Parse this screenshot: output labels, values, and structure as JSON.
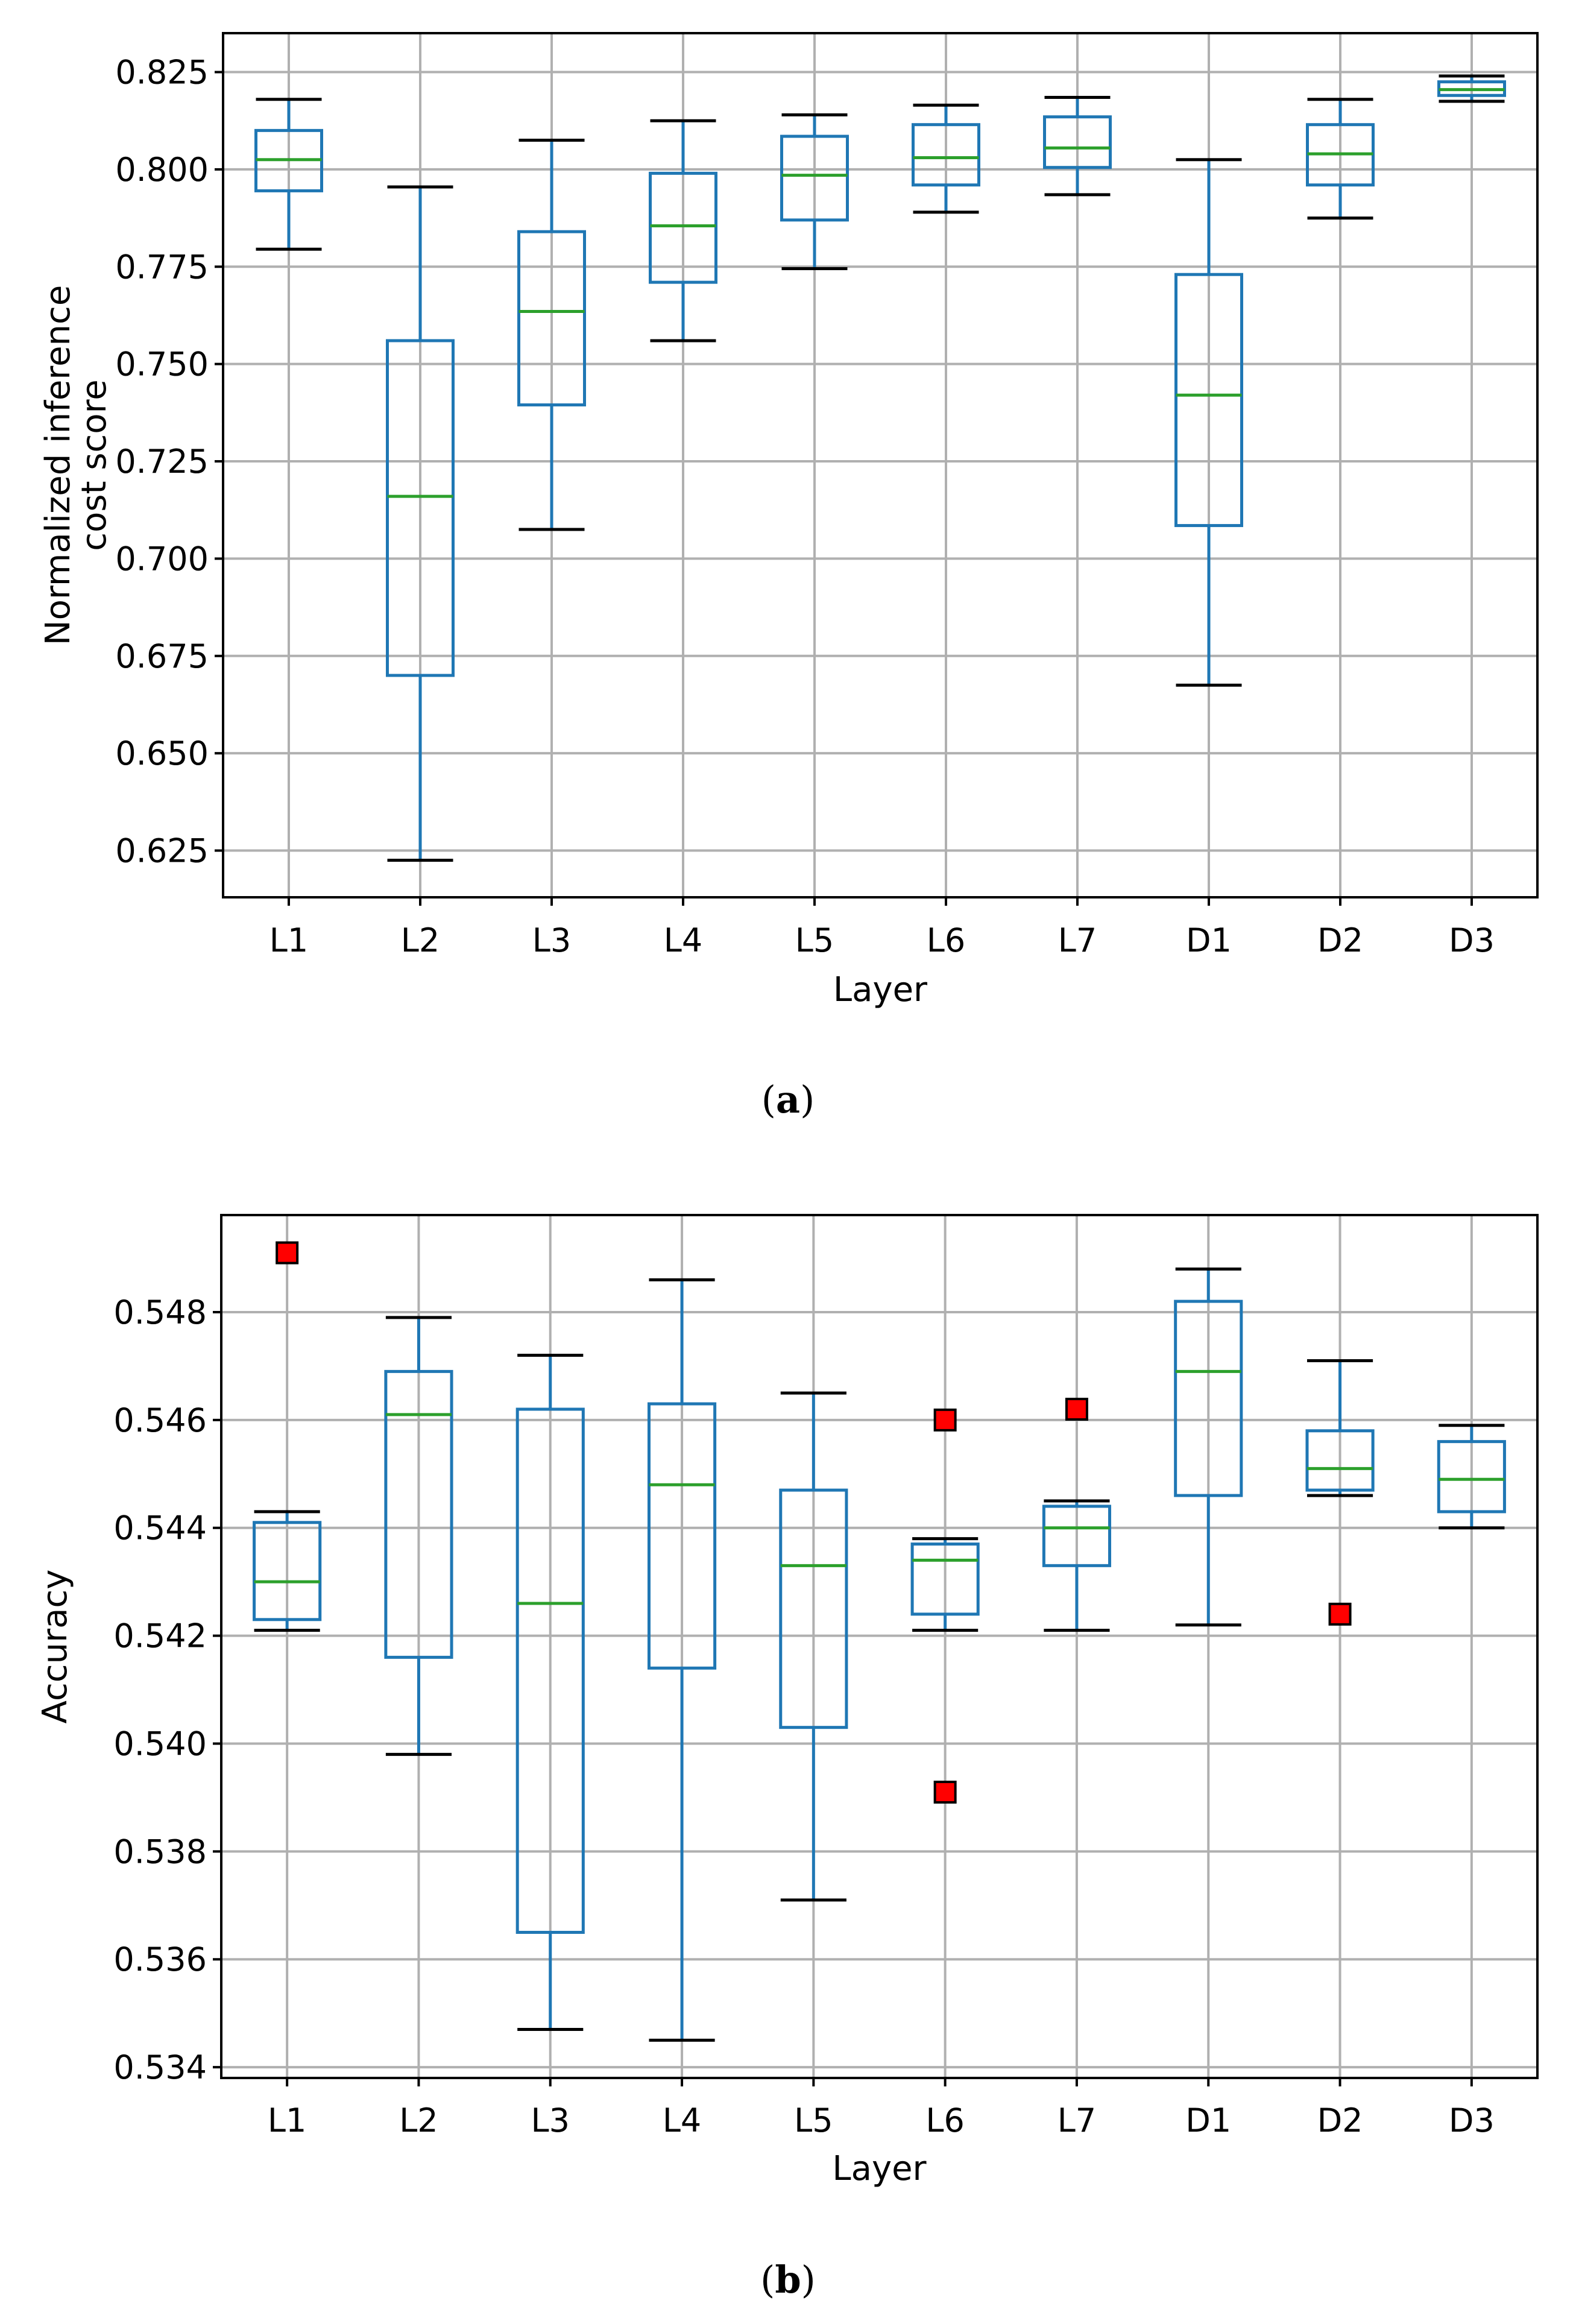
{
  "chart_data": [
    {
      "type": "box",
      "caption_label": "a",
      "xlabel": "Layer",
      "ylabel_lines": [
        "Normalized inference",
        "cost score"
      ],
      "categories": [
        "L1",
        "L2",
        "L3",
        "L4",
        "L5",
        "L6",
        "L7",
        "D1",
        "D2",
        "D3"
      ],
      "ylim": [
        0.613,
        0.835
      ],
      "yticks": [
        0.625,
        0.65,
        0.675,
        0.7,
        0.725,
        0.75,
        0.775,
        0.8,
        0.825
      ],
      "ytick_labels": [
        "0.625",
        "0.650",
        "0.675",
        "0.700",
        "0.725",
        "0.750",
        "0.775",
        "0.800",
        "0.825"
      ],
      "grid": true,
      "boxes": [
        {
          "whislo": 0.7795,
          "q1": 0.7945,
          "med": 0.8025,
          "q3": 0.81,
          "whishi": 0.818,
          "fliers": []
        },
        {
          "whislo": 0.6225,
          "q1": 0.67,
          "med": 0.716,
          "q3": 0.756,
          "whishi": 0.7955,
          "fliers": []
        },
        {
          "whislo": 0.7075,
          "q1": 0.7395,
          "med": 0.7635,
          "q3": 0.784,
          "whishi": 0.8075,
          "fliers": []
        },
        {
          "whislo": 0.756,
          "q1": 0.771,
          "med": 0.7855,
          "q3": 0.799,
          "whishi": 0.8125,
          "fliers": []
        },
        {
          "whislo": 0.7745,
          "q1": 0.787,
          "med": 0.7985,
          "q3": 0.8085,
          "whishi": 0.814,
          "fliers": []
        },
        {
          "whislo": 0.789,
          "q1": 0.796,
          "med": 0.803,
          "q3": 0.8115,
          "whishi": 0.8165,
          "fliers": []
        },
        {
          "whislo": 0.7935,
          "q1": 0.8005,
          "med": 0.8055,
          "q3": 0.8135,
          "whishi": 0.8185,
          "fliers": []
        },
        {
          "whislo": 0.6675,
          "q1": 0.7085,
          "med": 0.742,
          "q3": 0.773,
          "whishi": 0.8025,
          "fliers": []
        },
        {
          "whislo": 0.7875,
          "q1": 0.796,
          "med": 0.804,
          "q3": 0.8115,
          "whishi": 0.818,
          "fliers": []
        },
        {
          "whislo": 0.8175,
          "q1": 0.819,
          "med": 0.8205,
          "q3": 0.8225,
          "whishi": 0.824,
          "fliers": []
        }
      ]
    },
    {
      "type": "box",
      "caption_label": "b",
      "xlabel": "Layer",
      "ylabel_lines": [
        "Accuracy"
      ],
      "categories": [
        "L1",
        "L2",
        "L3",
        "L4",
        "L5",
        "L6",
        "L7",
        "D1",
        "D2",
        "D3"
      ],
      "ylim": [
        0.5338,
        0.5498
      ],
      "yticks": [
        0.534,
        0.536,
        0.538,
        0.54,
        0.542,
        0.544,
        0.546,
        0.548
      ],
      "ytick_labels": [
        "0.534",
        "0.536",
        "0.538",
        "0.540",
        "0.542",
        "0.544",
        "0.546",
        "0.548"
      ],
      "grid": true,
      "boxes": [
        {
          "whislo": 0.5421,
          "q1": 0.5423,
          "med": 0.543,
          "q3": 0.5441,
          "whishi": 0.5443,
          "fliers": [
            0.5491
          ]
        },
        {
          "whislo": 0.5398,
          "q1": 0.5416,
          "med": 0.5461,
          "q3": 0.5469,
          "whishi": 0.5479,
          "fliers": []
        },
        {
          "whislo": 0.5347,
          "q1": 0.5365,
          "med": 0.5426,
          "q3": 0.5462,
          "whishi": 0.5472,
          "fliers": []
        },
        {
          "whislo": 0.5345,
          "q1": 0.5414,
          "med": 0.5448,
          "q3": 0.5463,
          "whishi": 0.5486,
          "fliers": []
        },
        {
          "whislo": 0.5371,
          "q1": 0.5403,
          "med": 0.5433,
          "q3": 0.5447,
          "whishi": 0.5465,
          "fliers": []
        },
        {
          "whislo": 0.5421,
          "q1": 0.5424,
          "med": 0.5434,
          "q3": 0.5437,
          "whishi": 0.5438,
          "fliers": [
            0.546,
            0.5391
          ]
        },
        {
          "whislo": 0.5421,
          "q1": 0.5433,
          "med": 0.544,
          "q3": 0.5444,
          "whishi": 0.5445,
          "fliers": [
            0.5462
          ]
        },
        {
          "whislo": 0.5422,
          "q1": 0.5446,
          "med": 0.5469,
          "q3": 0.5482,
          "whishi": 0.5488,
          "fliers": []
        },
        {
          "whislo": 0.5446,
          "q1": 0.5447,
          "med": 0.5451,
          "q3": 0.5458,
          "whishi": 0.5471,
          "fliers": [
            0.5424
          ]
        },
        {
          "whislo": 0.544,
          "q1": 0.5443,
          "med": 0.5449,
          "q3": 0.5456,
          "whishi": 0.5459,
          "fliers": []
        }
      ]
    }
  ]
}
